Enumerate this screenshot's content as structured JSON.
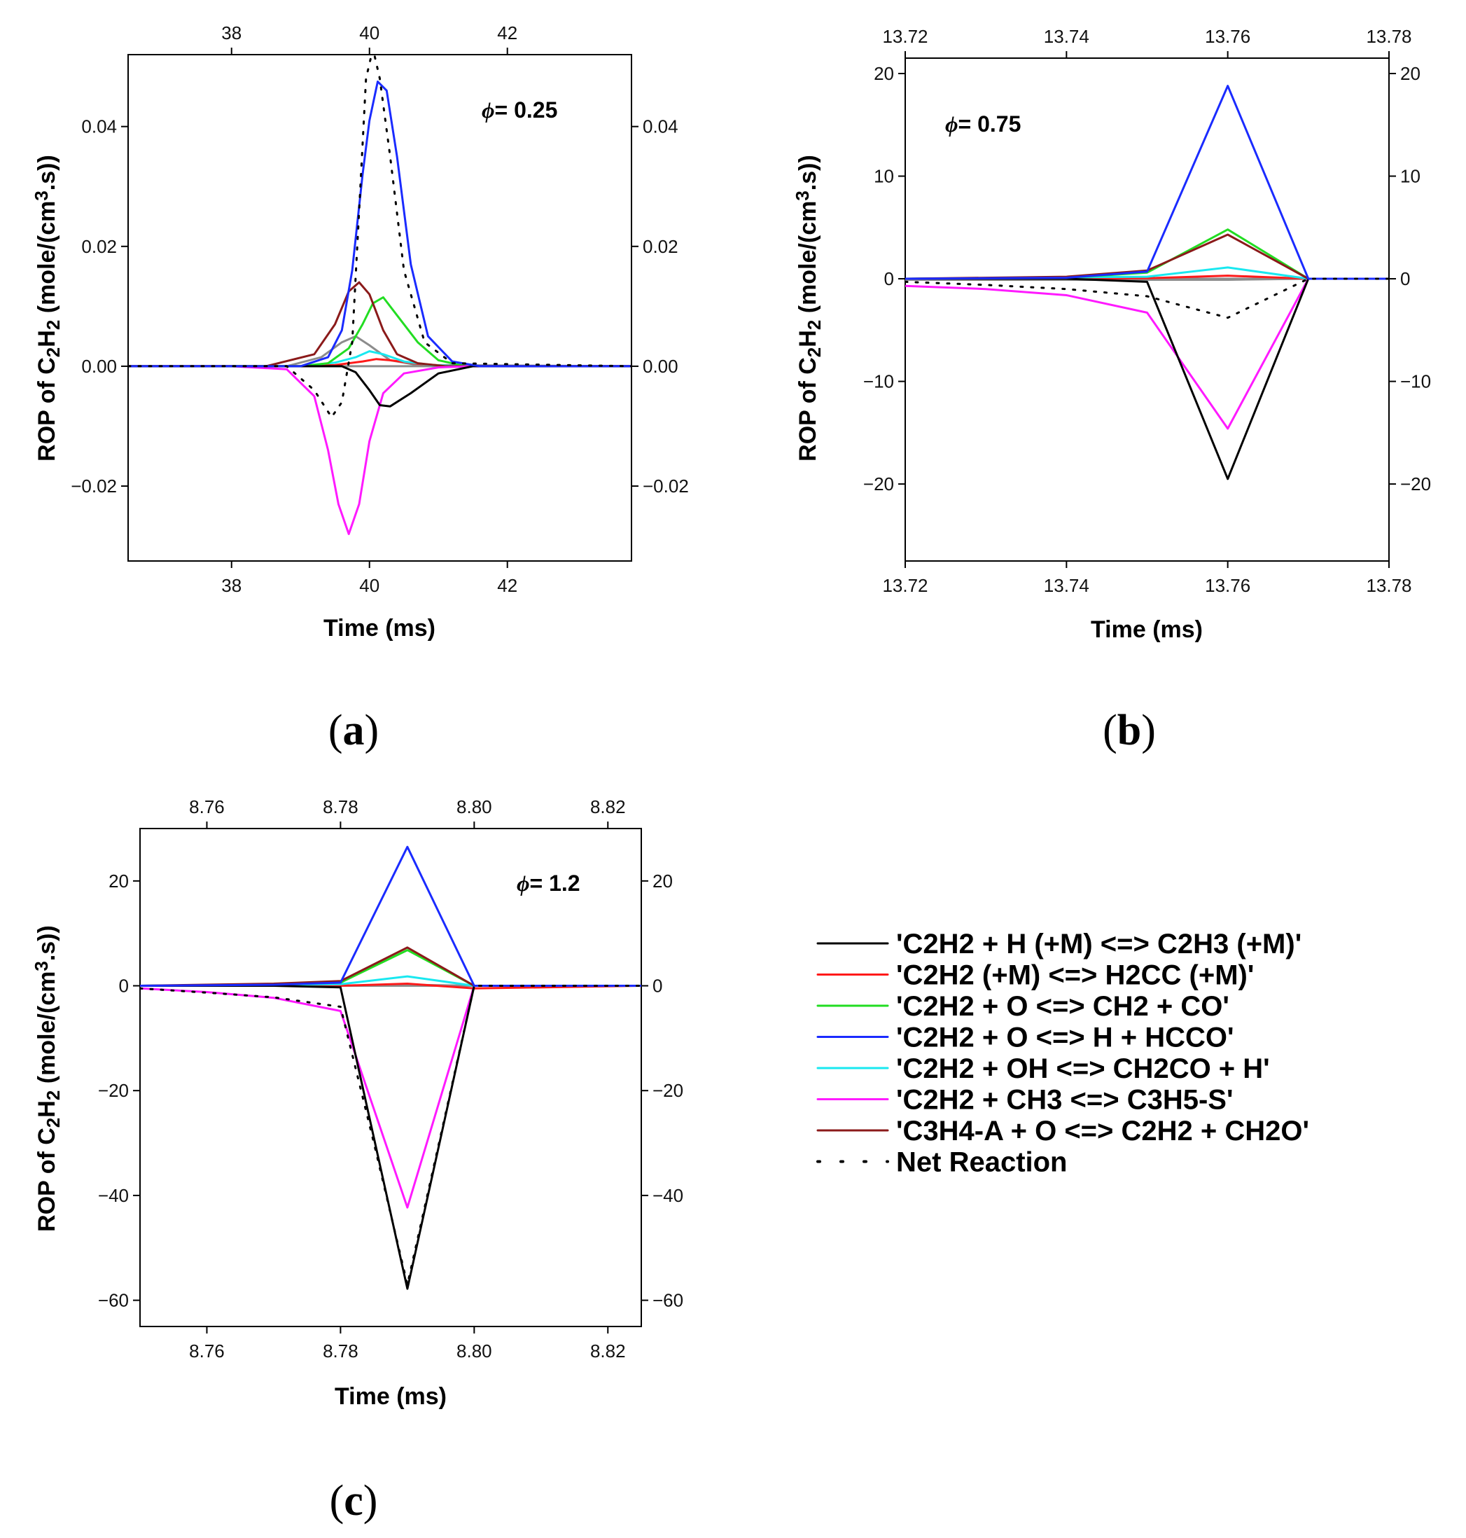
{
  "colors": {
    "C2H2 + H (+M) <=> C2H3 (+M)": "#000000",
    "C2H2 (+M) <=> H2CC (+M)": "#ff1a1a",
    "C2H2 + O <=> CH2 + CO": "#22dd22",
    "C2H2 + O <=> H + HCCO": "#1a2bff",
    "C2H2 + OH <=> CH2CO + H": "#19e8f0",
    "C2H2 + CH3 <=> C3H5-S": "#ff1aff",
    "C3H4-A + O <=> C2H2 + CH2O": "#8b1a1a",
    "extra": "#8c8c8c"
  },
  "legend": {
    "items": [
      {
        "key": "C2H2 + H (+M) <=> C2H3 (+M)",
        "label": "'C2H2 + H (+M) <=> C2H3 (+M)'",
        "style": "solid"
      },
      {
        "key": "C2H2 (+M) <=> H2CC (+M)",
        "label": "'C2H2 (+M) <=> H2CC (+M)'",
        "style": "solid"
      },
      {
        "key": "C2H2 + O <=> CH2 + CO",
        "label": "'C2H2 + O <=> CH2 + CO'",
        "style": "solid"
      },
      {
        "key": "C2H2 + O <=> H + HCCO",
        "label": "'C2H2 + O <=> H + HCCO'",
        "style": "solid"
      },
      {
        "key": "C2H2 + OH <=> CH2CO + H",
        "label": "'C2H2 + OH <=> CH2CO + H'",
        "style": "solid"
      },
      {
        "key": "C2H2 + CH3 <=> C3H5-S",
        "label": "'C2H2 + CH3 <=> C3H5-S'",
        "style": "solid"
      },
      {
        "key": "C3H4-A + O <=> C2H2 + CH2O",
        "label": "'C3H4-A + O <=> C2H2 + CH2O'",
        "style": "solid"
      },
      {
        "key": "Net Reaction",
        "label": "Net Reaction",
        "style": "dotted"
      }
    ]
  },
  "chart_data": [
    {
      "panel": "(a)",
      "type": "line",
      "annotation": "= 0.25",
      "phi_symbol": "ϕ",
      "xlabel": "Time (ms)",
      "ylabel_parts": {
        "a": "ROP of C",
        "b": "2",
        "c": "H",
        "d": "2",
        "e": " (mole/(cm",
        "f": "3",
        "g": ".s))"
      },
      "xlim": [
        36.5,
        43.8
      ],
      "ylim": [
        -0.0325,
        0.052
      ],
      "xticks": [
        38,
        40,
        42
      ],
      "xtick_labels": [
        "38",
        "40",
        "42"
      ],
      "yticks": [
        -0.02,
        0.0,
        0.02,
        0.04
      ],
      "ytick_labels": [
        "−0.02",
        "0.00",
        "0.02",
        "0.04"
      ],
      "series": [
        {
          "name": "C2H2 + H (+M) <=> C2H3 (+M)",
          "x": [
            36.5,
            38.5,
            39.3,
            39.6,
            39.8,
            40.0,
            40.15,
            40.3,
            40.6,
            41.0,
            41.5,
            43.8
          ],
          "y": [
            0,
            0,
            0,
            0,
            -0.001,
            -0.004,
            -0.0065,
            -0.0067,
            -0.0045,
            -0.0012,
            0,
            0
          ]
        },
        {
          "name": "C2H2 (+M) <=> H2CC (+M)",
          "x": [
            36.5,
            39.0,
            39.5,
            39.9,
            40.1,
            40.3,
            40.7,
            41.2,
            43.8
          ],
          "y": [
            0,
            0,
            0.0002,
            0.0008,
            0.0012,
            0.001,
            0.0004,
            0,
            0
          ]
        },
        {
          "name": "C2H2 + O <=> CH2 + CO",
          "x": [
            36.5,
            39.0,
            39.4,
            39.7,
            39.9,
            40.05,
            40.2,
            40.4,
            40.7,
            41.0,
            41.4,
            43.8
          ],
          "y": [
            0,
            0,
            0.0005,
            0.003,
            0.007,
            0.0105,
            0.0115,
            0.0085,
            0.004,
            0.001,
            0,
            0
          ]
        },
        {
          "name": "C2H2 + O <=> H + HCCO",
          "x": [
            36.5,
            39.0,
            39.4,
            39.6,
            39.75,
            39.9,
            40.0,
            40.12,
            40.25,
            40.4,
            40.6,
            40.85,
            41.2,
            41.6,
            43.8
          ],
          "y": [
            0,
            0,
            0.0015,
            0.006,
            0.016,
            0.032,
            0.041,
            0.0475,
            0.046,
            0.035,
            0.017,
            0.005,
            0.0008,
            0,
            0
          ]
        },
        {
          "name": "C2H2 + OH <=> CH2CO + H",
          "x": [
            36.5,
            39.0,
            39.5,
            39.8,
            40.0,
            40.2,
            40.5,
            40.9,
            41.3,
            43.8
          ],
          "y": [
            0,
            0,
            0.0006,
            0.0015,
            0.0025,
            0.002,
            0.0008,
            0.0002,
            0,
            0
          ]
        },
        {
          "name": "C2H2 + CH3 <=> C3H5-S",
          "x": [
            36.5,
            38.0,
            38.8,
            39.2,
            39.4,
            39.55,
            39.7,
            39.85,
            40.0,
            40.2,
            40.5,
            41.0,
            41.5,
            43.8
          ],
          "y": [
            0,
            0,
            -0.0005,
            -0.005,
            -0.014,
            -0.023,
            -0.028,
            -0.023,
            -0.0125,
            -0.0045,
            -0.0012,
            -0.0002,
            0,
            0
          ]
        },
        {
          "name": "C3H4-A + O <=> C2H2 + CH2O",
          "x": [
            36.5,
            38.5,
            39.2,
            39.5,
            39.7,
            39.85,
            40.0,
            40.2,
            40.4,
            40.7,
            41.1,
            43.8
          ],
          "y": [
            0,
            0,
            0.002,
            0.007,
            0.0125,
            0.014,
            0.012,
            0.006,
            0.002,
            0.0005,
            0,
            0
          ]
        },
        {
          "name": "extra",
          "x": [
            36.5,
            38.8,
            39.3,
            39.6,
            39.8,
            40.0,
            40.3,
            40.7,
            43.8
          ],
          "y": [
            0,
            0,
            0.0015,
            0.004,
            0.005,
            0.0035,
            0.001,
            0.0002,
            0
          ]
        },
        {
          "name": "Net Reaction",
          "style": "dotted",
          "x": [
            36.5,
            38.8,
            39.2,
            39.45,
            39.6,
            39.75,
            39.85,
            39.95,
            40.05,
            40.15,
            40.3,
            40.5,
            40.8,
            41.2,
            43.8
          ],
          "y": [
            0,
            0,
            -0.004,
            -0.0085,
            -0.006,
            0.004,
            0.026,
            0.048,
            0.053,
            0.048,
            0.035,
            0.016,
            0.004,
            0.0005,
            0
          ]
        }
      ]
    },
    {
      "panel": "(b)",
      "type": "line",
      "annotation": "= 0.75",
      "phi_symbol": "ϕ",
      "xlabel": "Time (ms)",
      "ylabel_parts": {
        "a": "ROP of C",
        "b": "2",
        "c": "H",
        "d": "2",
        "e": " (mole/(cm",
        "f": "3",
        "g": ".s))"
      },
      "xlim": [
        13.72,
        13.78
      ],
      "ylim": [
        -27.5,
        21.5
      ],
      "xticks": [
        13.72,
        13.74,
        13.76,
        13.78
      ],
      "xtick_labels": [
        "13.72",
        "13.74",
        "13.76",
        "13.78"
      ],
      "yticks": [
        -20,
        -10,
        0,
        10,
        20
      ],
      "ytick_labels": [
        "−20",
        "−10",
        "0",
        "10",
        "20"
      ],
      "series": [
        {
          "name": "C2H2 + H (+M) <=> C2H3 (+M)",
          "x": [
            13.72,
            13.74,
            13.75,
            13.76,
            13.77,
            13.78
          ],
          "y": [
            0,
            0,
            -0.3,
            -19.5,
            0,
            0
          ]
        },
        {
          "name": "C2H2 (+M) <=> H2CC (+M)",
          "x": [
            13.72,
            13.75,
            13.76,
            13.77,
            13.78
          ],
          "y": [
            0,
            0.05,
            0.3,
            0,
            0
          ]
        },
        {
          "name": "C2H2 + O <=> CH2 + CO",
          "x": [
            13.72,
            13.74,
            13.75,
            13.76,
            13.77,
            13.78
          ],
          "y": [
            0,
            0.1,
            0.6,
            4.8,
            0,
            0
          ]
        },
        {
          "name": "C2H2 + O <=> H + HCCO",
          "x": [
            13.72,
            13.74,
            13.75,
            13.76,
            13.77,
            13.78
          ],
          "y": [
            0,
            0.1,
            0.7,
            18.8,
            0,
            0
          ]
        },
        {
          "name": "C2H2 + OH <=> CH2CO + H",
          "x": [
            13.72,
            13.75,
            13.76,
            13.77,
            13.78
          ],
          "y": [
            0,
            0.2,
            1.1,
            0,
            0
          ]
        },
        {
          "name": "C2H2 + CH3 <=> C3H5-S",
          "x": [
            13.72,
            13.73,
            13.74,
            13.75,
            13.76,
            13.77,
            13.78
          ],
          "y": [
            -0.7,
            -1.0,
            -1.6,
            -3.3,
            -14.6,
            0,
            0
          ]
        },
        {
          "name": "C3H4-A + O <=> C2H2 + CH2O",
          "x": [
            13.72,
            13.74,
            13.75,
            13.76,
            13.77,
            13.78
          ],
          "y": [
            0,
            0.2,
            0.8,
            4.3,
            0,
            0
          ]
        },
        {
          "name": "extra",
          "x": [
            13.72,
            13.75,
            13.76,
            13.77,
            13.78
          ],
          "y": [
            -0.1,
            -0.1,
            -0.1,
            0,
            0
          ]
        },
        {
          "name": "Net Reaction",
          "style": "dotted",
          "x": [
            13.72,
            13.73,
            13.74,
            13.75,
            13.76,
            13.77,
            13.78
          ],
          "y": [
            -0.3,
            -0.6,
            -1.0,
            -1.7,
            -3.8,
            0,
            0
          ]
        }
      ]
    },
    {
      "panel": "(c)",
      "type": "line",
      "annotation": "= 1.2",
      "phi_symbol": "ϕ",
      "xlabel": "Time (ms)",
      "ylabel_parts": {
        "a": "ROP of C",
        "b": "2",
        "c": "H",
        "d": "2",
        "e": " (mole/(cm",
        "f": "3",
        "g": ".s))"
      },
      "xlim": [
        8.75,
        8.825
      ],
      "ylim": [
        -65,
        30
      ],
      "xticks": [
        8.76,
        8.78,
        8.8,
        8.82
      ],
      "xtick_labels": [
        "8.76",
        "8.78",
        "8.80",
        "8.82"
      ],
      "yticks": [
        -60,
        -40,
        -20,
        0,
        20
      ],
      "ytick_labels": [
        "−60",
        "−40",
        "−20",
        "0",
        "20"
      ],
      "series": [
        {
          "name": "C2H2 + H (+M) <=> C2H3 (+M)",
          "x": [
            8.75,
            8.77,
            8.78,
            8.79,
            8.8,
            8.825
          ],
          "y": [
            0,
            0,
            -0.3,
            -57.8,
            0,
            0
          ]
        },
        {
          "name": "C2H2 (+M) <=> H2CC (+M)",
          "x": [
            8.75,
            8.78,
            8.79,
            8.8,
            8.825
          ],
          "y": [
            0,
            0,
            0.4,
            -0.5,
            0
          ]
        },
        {
          "name": "C2H2 + O <=> CH2 + CO",
          "x": [
            8.75,
            8.77,
            8.78,
            8.79,
            8.8,
            8.825
          ],
          "y": [
            0,
            0.2,
            0.6,
            6.8,
            0,
            0
          ]
        },
        {
          "name": "C2H2 + O <=> H + HCCO",
          "x": [
            8.75,
            8.77,
            8.78,
            8.79,
            8.8,
            8.825
          ],
          "y": [
            0,
            0.2,
            0.6,
            26.5,
            0,
            0
          ]
        },
        {
          "name": "C2H2 + OH <=> CH2CO + H",
          "x": [
            8.75,
            8.78,
            8.79,
            8.8,
            8.825
          ],
          "y": [
            0,
            0.3,
            1.8,
            0,
            0
          ]
        },
        {
          "name": "C2H2 + CH3 <=> C3H5-S",
          "x": [
            8.75,
            8.76,
            8.77,
            8.78,
            8.79,
            8.8,
            8.825
          ],
          "y": [
            -0.5,
            -1.2,
            -2.3,
            -4.8,
            -42.3,
            0,
            0
          ]
        },
        {
          "name": "C3H4-A + O <=> C2H2 + CH2O",
          "x": [
            8.75,
            8.77,
            8.78,
            8.79,
            8.8,
            8.825
          ],
          "y": [
            0,
            0.4,
            0.9,
            7.3,
            0,
            0
          ]
        },
        {
          "name": "extra",
          "x": [
            8.75,
            8.78,
            8.79,
            8.8,
            8.825
          ],
          "y": [
            0,
            0,
            0.2,
            0,
            0
          ]
        },
        {
          "name": "Net Reaction",
          "style": "dotted",
          "x": [
            8.75,
            8.76,
            8.77,
            8.78,
            8.785,
            8.79,
            8.8,
            8.825
          ],
          "y": [
            -0.5,
            -1.3,
            -2.2,
            -4.0,
            -30,
            -57,
            0,
            0
          ]
        }
      ]
    }
  ]
}
